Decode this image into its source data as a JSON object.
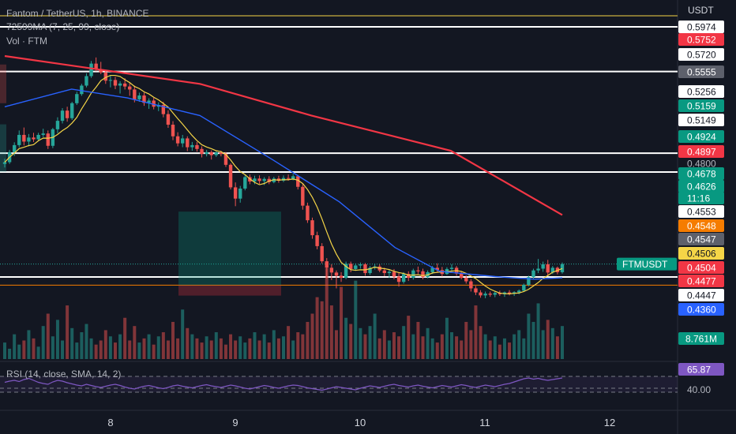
{
  "header": {
    "title": "Fantom / TetherUS, 1h, BINANCE",
    "ma_legend": "72599MA (7, 25, 99, close)",
    "vol_legend": "Vol · FTM",
    "rsi_legend": "RSI (14, close, SMA, 14, 2)",
    "currency": "USDT"
  },
  "colors": {
    "background": "#131722",
    "up": "#26a69a",
    "down": "#ef5350",
    "ma7": "#f5d547",
    "ma25": "#2962ff",
    "ma99": "#f23645",
    "rsi": "#7e57c2",
    "text": "#d1d4dc"
  },
  "chart_data": {
    "type": "candlestick",
    "symbol": "FTMUSDT",
    "interval": "1h",
    "x_ticks": [
      "8",
      "9",
      "10",
      "11",
      "12"
    ],
    "price_range": [
      0.436,
      0.599
    ],
    "candles": [
      [
        0.5195,
        0.5225,
        0.5175,
        0.5205
      ],
      [
        0.5205,
        0.5275,
        0.5195,
        0.5262
      ],
      [
        0.5262,
        0.5318,
        0.524,
        0.5302
      ],
      [
        0.5302,
        0.5385,
        0.529,
        0.536
      ],
      [
        0.536,
        0.5402,
        0.53,
        0.5322
      ],
      [
        0.5322,
        0.5365,
        0.5295,
        0.5345
      ],
      [
        0.5345,
        0.5372,
        0.532,
        0.5335
      ],
      [
        0.5335,
        0.5372,
        0.5325,
        0.536
      ],
      [
        0.536,
        0.5395,
        0.5348,
        0.5368
      ],
      [
        0.5368,
        0.5385,
        0.528,
        0.5298
      ],
      [
        0.5298,
        0.54,
        0.5285,
        0.5392
      ],
      [
        0.5392,
        0.546,
        0.537,
        0.544
      ],
      [
        0.544,
        0.5512,
        0.5425,
        0.5498
      ],
      [
        0.5498,
        0.552,
        0.5435,
        0.5455
      ],
      [
        0.5455,
        0.5548,
        0.5445,
        0.554
      ],
      [
        0.554,
        0.5605,
        0.553,
        0.5592
      ],
      [
        0.5592,
        0.565,
        0.5582,
        0.564
      ],
      [
        0.564,
        0.571,
        0.563,
        0.5694
      ],
      [
        0.5694,
        0.578,
        0.5684,
        0.5765
      ],
      [
        0.5765,
        0.58,
        0.5722,
        0.5732
      ],
      [
        0.5732,
        0.5775,
        0.5705,
        0.5715
      ],
      [
        0.5715,
        0.573,
        0.565,
        0.5668
      ],
      [
        0.5668,
        0.5695,
        0.563,
        0.5672
      ],
      [
        0.5672,
        0.569,
        0.562,
        0.564
      ],
      [
        0.564,
        0.5665,
        0.5595,
        0.5652
      ],
      [
        0.5652,
        0.5682,
        0.5618,
        0.5635
      ],
      [
        0.5635,
        0.5655,
        0.5582,
        0.5618
      ],
      [
        0.5618,
        0.564,
        0.5545,
        0.5562
      ],
      [
        0.5562,
        0.56,
        0.5548,
        0.5584
      ],
      [
        0.5584,
        0.56,
        0.5525,
        0.5542
      ],
      [
        0.5542,
        0.5568,
        0.5508,
        0.5555
      ],
      [
        0.5555,
        0.557,
        0.5505,
        0.552
      ],
      [
        0.552,
        0.5545,
        0.5495,
        0.553
      ],
      [
        0.553,
        0.5548,
        0.546,
        0.5478
      ],
      [
        0.5478,
        0.55,
        0.54,
        0.5418
      ],
      [
        0.5418,
        0.5438,
        0.533,
        0.5352
      ],
      [
        0.5352,
        0.5375,
        0.5295,
        0.5312
      ],
      [
        0.5312,
        0.536,
        0.529,
        0.534
      ],
      [
        0.534,
        0.5352,
        0.5268,
        0.529
      ],
      [
        0.529,
        0.532,
        0.527,
        0.5302
      ],
      [
        0.5302,
        0.532,
        0.5265,
        0.528
      ],
      [
        0.528,
        0.5295,
        0.5232,
        0.5252
      ],
      [
        0.5252,
        0.5275,
        0.5238,
        0.5262
      ],
      [
        0.5262,
        0.5272,
        0.522,
        0.5245
      ],
      [
        0.5245,
        0.5268,
        0.5235,
        0.526
      ],
      [
        0.526,
        0.527,
        0.5238,
        0.5252
      ],
      [
        0.5252,
        0.5262,
        0.5178,
        0.519
      ],
      [
        0.519,
        0.5198,
        0.505,
        0.5062
      ],
      [
        0.5062,
        0.509,
        0.4955,
        0.4998
      ],
      [
        0.4998,
        0.507,
        0.4975,
        0.5055
      ],
      [
        0.5055,
        0.513,
        0.5045,
        0.512
      ],
      [
        0.512,
        0.5135,
        0.508,
        0.5095
      ],
      [
        0.5095,
        0.5128,
        0.508,
        0.5112
      ],
      [
        0.5112,
        0.513,
        0.5082,
        0.5098
      ],
      [
        0.5098,
        0.512,
        0.5075,
        0.511
      ],
      [
        0.511,
        0.5125,
        0.508,
        0.5092
      ],
      [
        0.5092,
        0.5122,
        0.5085,
        0.5112
      ],
      [
        0.5112,
        0.5128,
        0.5088,
        0.51
      ],
      [
        0.51,
        0.513,
        0.5092,
        0.5115
      ],
      [
        0.5115,
        0.5135,
        0.51,
        0.511
      ],
      [
        0.511,
        0.5138,
        0.5102,
        0.5125
      ],
      [
        0.5125,
        0.5132,
        0.505,
        0.5065
      ],
      [
        0.5065,
        0.508,
        0.4935,
        0.4958
      ],
      [
        0.4958,
        0.4975,
        0.486,
        0.4875
      ],
      [
        0.4875,
        0.489,
        0.477,
        0.479
      ],
      [
        0.479,
        0.481,
        0.471,
        0.4728
      ],
      [
        0.4728,
        0.4745,
        0.463,
        0.4642
      ],
      [
        0.4642,
        0.466,
        0.4545,
        0.4605
      ],
      [
        0.4605,
        0.4625,
        0.4535,
        0.4578
      ],
      [
        0.4578,
        0.459,
        0.4488,
        0.456
      ],
      [
        0.456,
        0.458,
        0.4525,
        0.4548
      ],
      [
        0.4548,
        0.464,
        0.454,
        0.4628
      ],
      [
        0.4628,
        0.464,
        0.458,
        0.4598
      ],
      [
        0.4598,
        0.463,
        0.4588,
        0.4618
      ],
      [
        0.4618,
        0.4635,
        0.46,
        0.4625
      ],
      [
        0.4625,
        0.4632,
        0.456,
        0.4575
      ],
      [
        0.4575,
        0.4615,
        0.4565,
        0.4605
      ],
      [
        0.4605,
        0.4628,
        0.4595,
        0.4612
      ],
      [
        0.4612,
        0.4625,
        0.458,
        0.459
      ],
      [
        0.459,
        0.4605,
        0.4558,
        0.4575
      ],
      [
        0.4575,
        0.4595,
        0.4548,
        0.4582
      ],
      [
        0.4582,
        0.4598,
        0.454,
        0.4555
      ],
      [
        0.4555,
        0.4575,
        0.4498,
        0.4525
      ],
      [
        0.4525,
        0.458,
        0.4515,
        0.457
      ],
      [
        0.457,
        0.4585,
        0.453,
        0.4548
      ],
      [
        0.4548,
        0.46,
        0.4538,
        0.459
      ],
      [
        0.459,
        0.4612,
        0.457,
        0.4585
      ],
      [
        0.4585,
        0.46,
        0.454,
        0.4552
      ],
      [
        0.4552,
        0.459,
        0.4545,
        0.458
      ],
      [
        0.458,
        0.4615,
        0.457,
        0.4605
      ],
      [
        0.4605,
        0.463,
        0.458,
        0.4592
      ],
      [
        0.4592,
        0.461,
        0.4555,
        0.457
      ],
      [
        0.457,
        0.4608,
        0.4565,
        0.4598
      ],
      [
        0.4598,
        0.4625,
        0.4585,
        0.4605
      ],
      [
        0.4605,
        0.4615,
        0.456,
        0.4572
      ],
      [
        0.4572,
        0.4585,
        0.454,
        0.4548
      ],
      [
        0.4548,
        0.4562,
        0.4515,
        0.4528
      ],
      [
        0.4528,
        0.454,
        0.447,
        0.4488
      ],
      [
        0.4488,
        0.4502,
        0.445,
        0.4465
      ],
      [
        0.4465,
        0.4478,
        0.4435,
        0.4448
      ],
      [
        0.4448,
        0.447,
        0.4432,
        0.4458
      ],
      [
        0.4458,
        0.447,
        0.444,
        0.4452
      ],
      [
        0.4452,
        0.4472,
        0.4438,
        0.4462
      ],
      [
        0.4462,
        0.4475,
        0.4445,
        0.4455
      ],
      [
        0.4455,
        0.447,
        0.444,
        0.4465
      ],
      [
        0.4465,
        0.4478,
        0.4448,
        0.4458
      ],
      [
        0.4458,
        0.4472,
        0.4445,
        0.4466
      ],
      [
        0.4466,
        0.4482,
        0.4455,
        0.4475
      ],
      [
        0.4475,
        0.4515,
        0.4468,
        0.4508
      ],
      [
        0.4508,
        0.456,
        0.45,
        0.4552
      ],
      [
        0.4552,
        0.46,
        0.4542,
        0.459
      ],
      [
        0.459,
        0.4655,
        0.4575,
        0.46
      ],
      [
        0.46,
        0.464,
        0.4582,
        0.4625
      ],
      [
        0.4625,
        0.465,
        0.456,
        0.4578
      ],
      [
        0.4578,
        0.4615,
        0.457,
        0.4605
      ],
      [
        0.4605,
        0.4612,
        0.4568,
        0.458
      ],
      [
        0.458,
        0.4635,
        0.4572,
        0.4626
      ]
    ],
    "ma99": [
      [
        0,
        0.5808
      ],
      [
        0.35,
        0.565
      ],
      [
        0.55,
        0.547
      ],
      [
        0.8,
        0.527
      ],
      [
        1.0,
        0.4905
      ]
    ],
    "ma25": [
      [
        0,
        0.552
      ],
      [
        0.12,
        0.562
      ],
      [
        0.22,
        0.557
      ],
      [
        0.35,
        0.547
      ],
      [
        0.48,
        0.522
      ],
      [
        0.6,
        0.498
      ],
      [
        0.7,
        0.472
      ],
      [
        0.78,
        0.4585
      ],
      [
        0.88,
        0.4555
      ],
      [
        0.95,
        0.454
      ],
      [
        1.0,
        0.4548
      ]
    ],
    "volume": [
      8,
      5,
      12,
      7,
      9,
      14,
      10,
      6,
      16,
      22,
      11,
      19,
      9,
      26,
      15,
      8,
      13,
      17,
      10,
      7,
      9,
      14,
      11,
      8,
      12,
      20,
      9,
      16,
      8,
      10,
      12,
      7,
      11,
      13,
      9,
      18,
      10,
      24,
      15,
      12,
      10,
      8,
      11,
      9,
      13,
      10,
      7,
      12,
      9,
      11,
      8,
      10,
      13,
      9,
      12,
      8,
      14,
      10,
      11,
      16,
      9,
      13,
      12,
      18,
      22,
      30,
      28,
      44,
      26,
      14,
      35,
      20,
      17,
      38,
      15,
      12,
      16,
      22,
      10,
      14,
      9,
      13,
      11,
      16,
      21,
      12,
      18,
      11,
      15,
      10,
      8,
      12,
      20,
      13,
      11,
      9,
      18,
      14,
      26,
      16,
      12,
      9,
      11,
      7,
      10,
      8,
      12,
      14,
      10,
      22,
      18,
      27,
      14,
      19,
      15,
      11,
      16
    ],
    "rsi": [
      55,
      58,
      60,
      57,
      62,
      65,
      60,
      55,
      52,
      50,
      56,
      60,
      58,
      54,
      51,
      48,
      46,
      50,
      47,
      44,
      42,
      45,
      48,
      50,
      47,
      43,
      40,
      38,
      42,
      45,
      47,
      44,
      41,
      39,
      42,
      46,
      48,
      45,
      43,
      41,
      44,
      47,
      49,
      46,
      44,
      42,
      45,
      48,
      46,
      43,
      40,
      38,
      41,
      44,
      47,
      45,
      42,
      40,
      43,
      46,
      48,
      47,
      44,
      41,
      39,
      37,
      35,
      38,
      41,
      44,
      42,
      40,
      38,
      36,
      40,
      43,
      46,
      44,
      42,
      45,
      48,
      50,
      47,
      45,
      43,
      46,
      48,
      45,
      43,
      41,
      44,
      47,
      45,
      43,
      46,
      49,
      47,
      44,
      42,
      45,
      48,
      46,
      44,
      47,
      50,
      52,
      56,
      60,
      64,
      66,
      63,
      65,
      62,
      60,
      62,
      64,
      66
    ],
    "rsi_levels": [
      70,
      40,
      30
    ],
    "price_lines": [
      0.5974,
      0.572,
      0.5256,
      0.5149,
      0.4553
    ],
    "price_labels": [
      {
        "value": "0.5974",
        "bg": "#ffffff",
        "fg": "#131722"
      },
      {
        "value": "0.5752",
        "bg": "#f23645",
        "fg": "#ffffff"
      },
      {
        "value": "0.5720",
        "bg": "#ffffff",
        "fg": "#131722"
      },
      {
        "value": "0.5555",
        "bg": "#5d606b",
        "fg": "#ffffff"
      },
      {
        "value": "0.5256",
        "bg": "#ffffff",
        "fg": "#131722"
      },
      {
        "value": "0.5159",
        "bg": "#089981",
        "fg": "#ffffff"
      },
      {
        "value": "0.5149",
        "bg": "#ffffff",
        "fg": "#131722"
      },
      {
        "value": "0.4924",
        "bg": "#089981",
        "fg": "#ffffff"
      },
      {
        "value": "0.4897",
        "bg": "#f23645",
        "fg": "#ffffff"
      },
      {
        "value": "0.4800",
        "bg": "none",
        "fg": "#b2b5be"
      },
      {
        "value": "0.4678",
        "bg": "#089981",
        "fg": "#ffffff"
      },
      {
        "value": "0.4626",
        "bg": "#089981",
        "fg": "#ffffff"
      },
      {
        "value": "11:16",
        "bg": "#089981",
        "fg": "#ffffff"
      },
      {
        "value": "0.4553",
        "bg": "#ffffff",
        "fg": "#131722"
      },
      {
        "value": "0.4548",
        "bg": "#f57c00",
        "fg": "#ffffff"
      },
      {
        "value": "0.4547",
        "bg": "#5d606b",
        "fg": "#ffffff"
      },
      {
        "value": "0.4506",
        "bg": "#f5d547",
        "fg": "#131722"
      },
      {
        "value": "0.4504",
        "bg": "#f23645",
        "fg": "#ffffff"
      },
      {
        "value": "0.4477",
        "bg": "#f23645",
        "fg": "#ffffff"
      },
      {
        "value": "0.4447",
        "bg": "#ffffff",
        "fg": "#131722"
      },
      {
        "value": "0.4360",
        "bg": "#2962ff",
        "fg": "#ffffff"
      }
    ],
    "symbol_tag": "FTMUSDT",
    "volume_label": "8.761M",
    "rsi_value": "65.87",
    "rsi_axis_label": "40.00"
  }
}
